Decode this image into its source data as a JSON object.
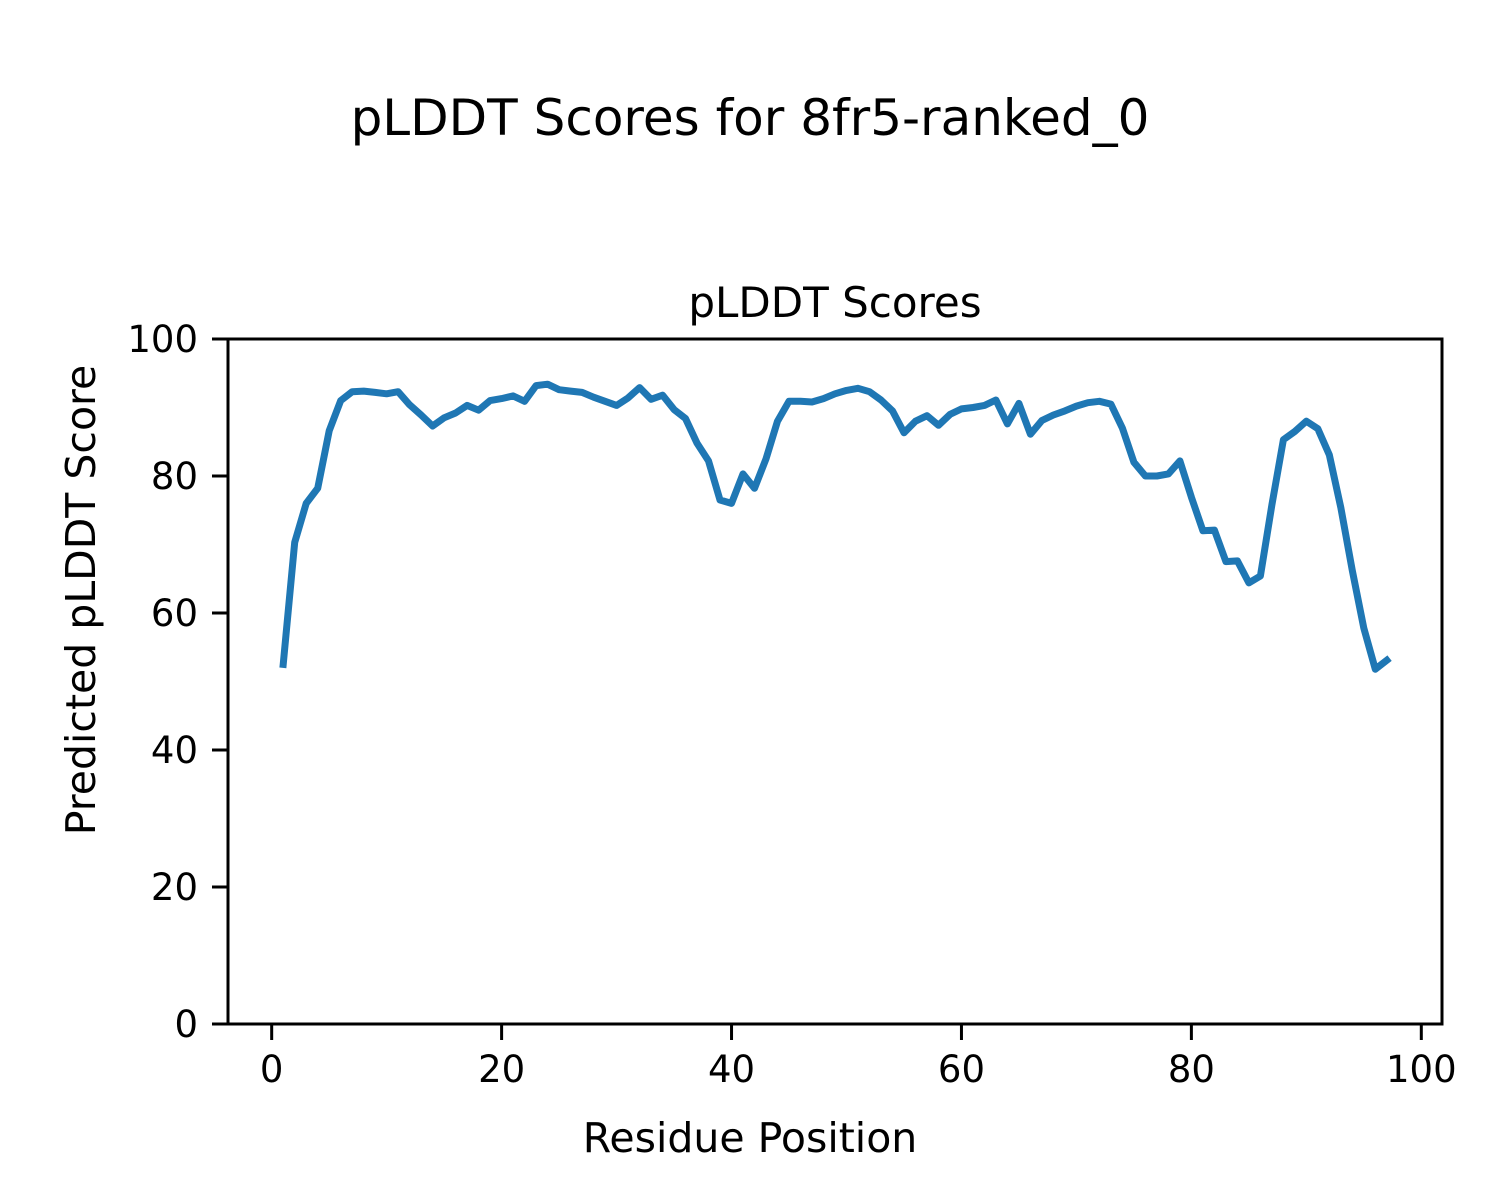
{
  "figure": {
    "title": "pLDDT Scores for 8fr5-ranked_0"
  },
  "chart_data": {
    "type": "line",
    "title": "pLDDT Scores",
    "xlabel": "Residue Position",
    "ylabel": "Predicted pLDDT Score",
    "xlim": [
      -3.8,
      101.8
    ],
    "ylim": [
      0,
      100
    ],
    "x_ticks": [
      0,
      20,
      40,
      60,
      80,
      100
    ],
    "y_ticks": [
      0,
      20,
      40,
      60,
      80,
      100
    ],
    "grid": false,
    "legend_position": "none",
    "line_color": "#1f77b4",
    "x": [
      1,
      2,
      3,
      4,
      5,
      6,
      7,
      8,
      9,
      10,
      11,
      12,
      13,
      14,
      15,
      16,
      17,
      18,
      19,
      20,
      21,
      22,
      23,
      24,
      25,
      26,
      27,
      28,
      29,
      30,
      31,
      32,
      33,
      34,
      35,
      36,
      37,
      38,
      39,
      40,
      41,
      42,
      43,
      44,
      45,
      46,
      47,
      48,
      49,
      50,
      51,
      52,
      53,
      54,
      55,
      56,
      57,
      58,
      59,
      60,
      61,
      62,
      63,
      64,
      65,
      66,
      67,
      68,
      69,
      70,
      71,
      72,
      73,
      74,
      75,
      76,
      77,
      78,
      79,
      80,
      81,
      82,
      83,
      84,
      85,
      86,
      87,
      88,
      89,
      90,
      91,
      92,
      93,
      94,
      95,
      96,
      97
    ],
    "y": [
      52.5,
      70.3,
      76.0,
      78.2,
      86.6,
      91.0,
      92.3,
      92.4,
      92.2,
      92.0,
      92.3,
      90.4,
      88.9,
      87.3,
      88.5,
      89.2,
      90.3,
      89.6,
      91.0,
      91.3,
      91.7,
      90.9,
      93.2,
      93.4,
      92.6,
      92.4,
      92.2,
      91.5,
      90.9,
      90.3,
      91.4,
      92.9,
      91.2,
      91.8,
      89.7,
      88.4,
      84.8,
      82.2,
      76.5,
      76.0,
      80.3,
      78.2,
      82.5,
      88.0,
      90.9,
      90.9,
      90.8,
      91.3,
      92.0,
      92.5,
      92.8,
      92.3,
      91.1,
      89.5,
      86.3,
      88.0,
      88.8,
      87.4,
      89.0,
      89.8,
      90.0,
      90.3,
      91.1,
      87.6,
      90.6,
      86.1,
      88.1,
      88.9,
      89.5,
      90.2,
      90.7,
      90.9,
      90.5,
      87.0,
      82.0,
      80.0,
      80.0,
      80.3,
      82.2,
      76.9,
      72.0,
      72.1,
      67.5,
      67.6,
      64.4,
      65.4,
      75.8,
      85.3,
      86.5,
      88.0,
      86.9,
      83.1,
      75.4,
      66.2,
      57.8,
      51.8,
      53.1
    ]
  }
}
